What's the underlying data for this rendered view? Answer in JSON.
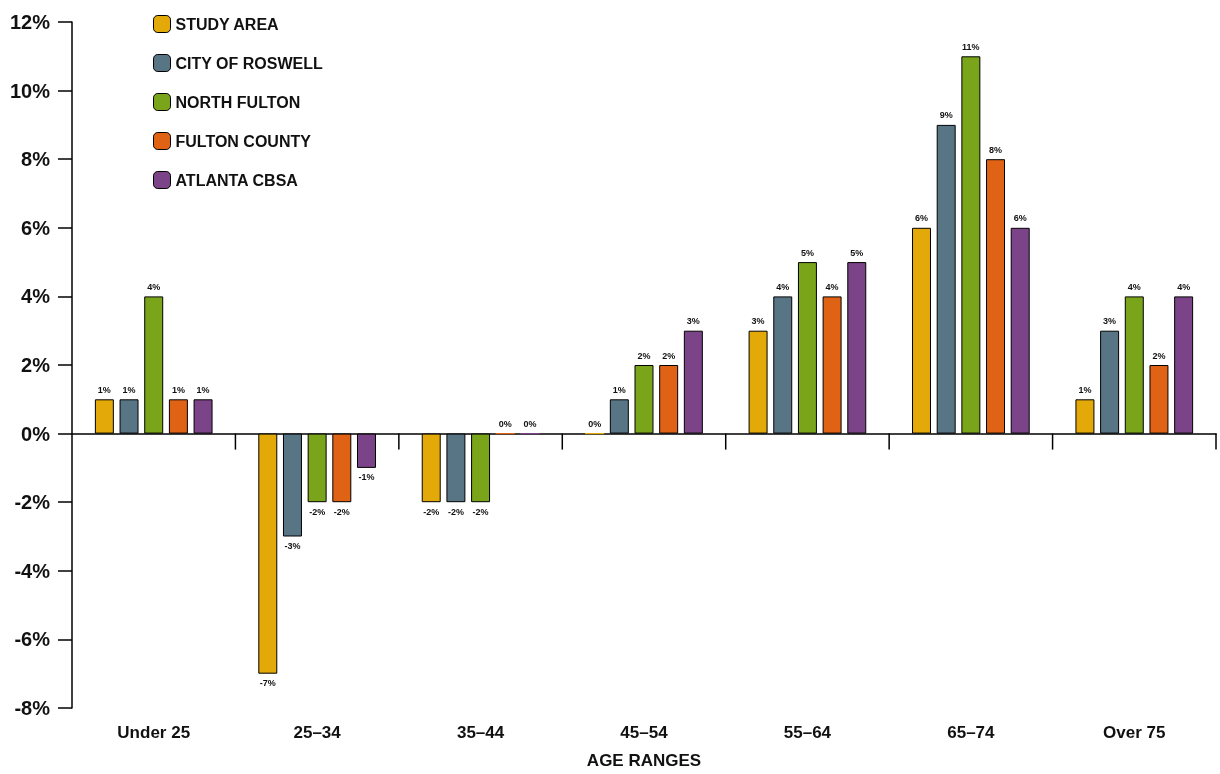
{
  "chart_data": {
    "type": "bar",
    "xlabel": "AGE RANGES",
    "categories": [
      "Under 25",
      "25–34",
      "35–44",
      "45–54",
      "55–64",
      "65–74",
      "Over 75"
    ],
    "series": [
      {
        "name": "STUDY AREA",
        "color": "#e3a908",
        "values": [
          1,
          -7,
          -2,
          0,
          3,
          6,
          1
        ],
        "value_labels": [
          "1%",
          "-7%",
          "-2%",
          "0%",
          "3%",
          "6%",
          "1%"
        ]
      },
      {
        "name": "CITY OF ROSWELL",
        "color": "#587585",
        "values": [
          1,
          -3,
          -2,
          1,
          4,
          9,
          3
        ],
        "value_labels": [
          "1%",
          "-3%",
          "-2%",
          "1%",
          "4%",
          "9%",
          "3%"
        ]
      },
      {
        "name": "NORTH FULTON",
        "color": "#7aa51a",
        "values": [
          4,
          -2,
          -2,
          2,
          5,
          11,
          4
        ],
        "value_labels": [
          "4%",
          "-2%",
          "-2%",
          "2%",
          "5%",
          "11%",
          "4%"
        ]
      },
      {
        "name": "FULTON COUNTY",
        "color": "#e06315",
        "values": [
          1,
          -2,
          0,
          2,
          4,
          8,
          2
        ],
        "value_labels": [
          "1%",
          "-2%",
          "0%",
          "2%",
          "4%",
          "8%",
          "2%"
        ]
      },
      {
        "name": "ATLANTA CBSA",
        "color": "#7b4488",
        "values": [
          1,
          -1,
          0,
          3,
          5,
          6,
          4
        ],
        "value_labels": [
          "1%",
          "-1%",
          "0%",
          "3%",
          "5%",
          "6%",
          "4%"
        ]
      }
    ],
    "ylim": [
      -8,
      12
    ],
    "yticks": [
      {
        "value": -8,
        "label": "-8%"
      },
      {
        "value": -6,
        "label": "-6%"
      },
      {
        "value": -4,
        "label": "-4%"
      },
      {
        "value": -2,
        "label": "-2%"
      },
      {
        "value": 0,
        "label": "0%"
      },
      {
        "value": 2,
        "label": "2%"
      },
      {
        "value": 4,
        "label": "4%"
      },
      {
        "value": 6,
        "label": "6%"
      },
      {
        "value": 8,
        "label": "8%"
      },
      {
        "value": 10,
        "label": "10%"
      },
      {
        "value": 12,
        "label": "12%"
      }
    ],
    "legend": "top left"
  }
}
